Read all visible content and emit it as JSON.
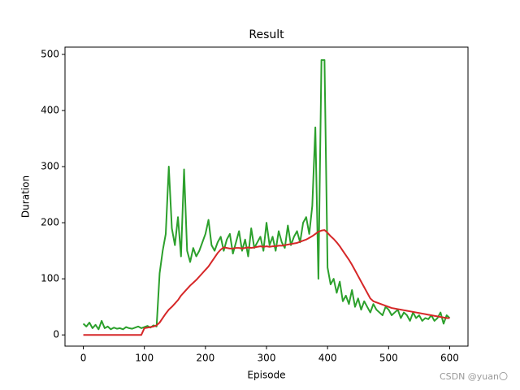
{
  "chart_data": {
    "type": "line",
    "title": "Result",
    "x_label": "Episode",
    "y_label": "Duration",
    "watermark": "CSDN @yuan〇",
    "x": [
      0,
      5,
      10,
      15,
      20,
      25,
      30,
      35,
      40,
      45,
      50,
      55,
      60,
      65,
      70,
      75,
      80,
      85,
      90,
      95,
      100,
      105,
      110,
      115,
      120,
      125,
      130,
      135,
      140,
      145,
      150,
      155,
      160,
      165,
      170,
      175,
      180,
      185,
      190,
      195,
      200,
      205,
      210,
      215,
      220,
      225,
      230,
      235,
      240,
      245,
      250,
      255,
      260,
      265,
      270,
      275,
      280,
      285,
      290,
      295,
      300,
      305,
      310,
      315,
      320,
      325,
      330,
      335,
      340,
      345,
      350,
      355,
      360,
      365,
      370,
      375,
      380,
      385,
      390,
      395,
      400,
      405,
      410,
      415,
      420,
      425,
      430,
      435,
      440,
      445,
      450,
      455,
      460,
      465,
      470,
      475,
      480,
      485,
      490,
      495,
      500,
      505,
      510,
      515,
      520,
      525,
      530,
      535,
      540,
      545,
      550,
      555,
      560,
      565,
      570,
      575,
      580,
      585,
      590,
      595,
      600
    ],
    "series": [
      {
        "color": "#2ca02c",
        "values": [
          20,
          15,
          22,
          12,
          18,
          10,
          25,
          12,
          15,
          10,
          13,
          11,
          12,
          10,
          14,
          12,
          11,
          13,
          15,
          12,
          14,
          16,
          13,
          17,
          15,
          110,
          150,
          180,
          300,
          190,
          160,
          210,
          140,
          295,
          150,
          130,
          155,
          140,
          150,
          165,
          180,
          205,
          160,
          150,
          165,
          175,
          150,
          170,
          180,
          145,
          165,
          185,
          150,
          170,
          140,
          190,
          155,
          165,
          175,
          150,
          200,
          160,
          175,
          150,
          185,
          165,
          155,
          195,
          160,
          175,
          185,
          165,
          200,
          210,
          180,
          230,
          370,
          100,
          490,
          490,
          120,
          90,
          100,
          75,
          95,
          60,
          70,
          55,
          80,
          50,
          65,
          45,
          60,
          50,
          40,
          55,
          45,
          40,
          35,
          50,
          45,
          35,
          40,
          45,
          30,
          40,
          35,
          25,
          40,
          30,
          35,
          25,
          30,
          28,
          35,
          25,
          30,
          40,
          20,
          35,
          30
        ]
      },
      {
        "color": "#d62728",
        "values": [
          0,
          0,
          0,
          0,
          0,
          0,
          0,
          0,
          0,
          0,
          0,
          0,
          0,
          0,
          0,
          0,
          0,
          0,
          0,
          0,
          12,
          13,
          14,
          15,
          17,
          22,
          30,
          38,
          45,
          50,
          56,
          62,
          70,
          76,
          82,
          88,
          93,
          98,
          104,
          110,
          116,
          122,
          130,
          138,
          146,
          152,
          156,
          155,
          154,
          154,
          155,
          155,
          154,
          155,
          156,
          155,
          156,
          157,
          158,
          157,
          158,
          157,
          158,
          158,
          159,
          159,
          160,
          161,
          162,
          163,
          164,
          166,
          168,
          170,
          173,
          176,
          180,
          184,
          186,
          187,
          182,
          176,
          171,
          165,
          158,
          150,
          142,
          134,
          125,
          115,
          105,
          95,
          85,
          75,
          65,
          60,
          58,
          56,
          54,
          52,
          50,
          48,
          47,
          46,
          45,
          44,
          43,
          42,
          41,
          40,
          39,
          38,
          37,
          36,
          35,
          34,
          33,
          32,
          31,
          30,
          30
        ]
      }
    ],
    "xlim": [
      -30,
      630
    ],
    "ylim": [
      -20,
      513
    ],
    "xticks": [
      0,
      100,
      200,
      300,
      400,
      500,
      600
    ],
    "yticks": [
      0,
      100,
      200,
      300,
      400,
      500
    ],
    "grid": false
  }
}
